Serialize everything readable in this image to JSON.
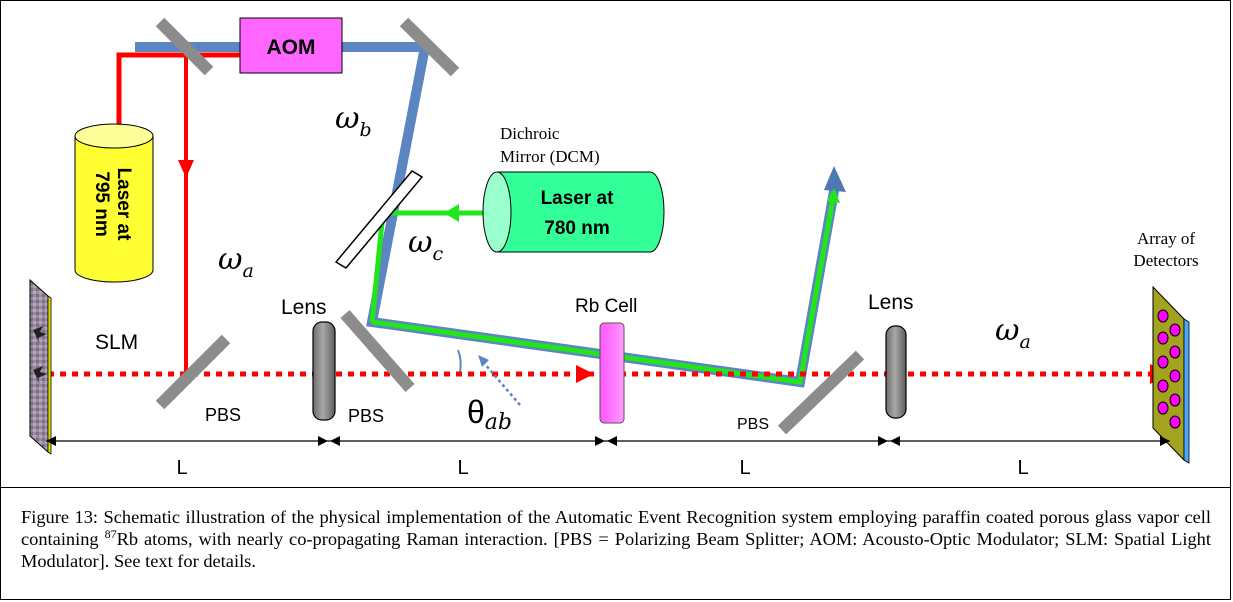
{
  "labels": {
    "aom": "AOM",
    "laser795_line1": "Laser at",
    "laser795_line2": "795 nm",
    "laser780_line1": "Laser at",
    "laser780_line2": "780 nm",
    "dcm_line1": "Dichroic",
    "dcm_line2": "Mirror (DCM)",
    "slm": "SLM",
    "lens_left": "Lens",
    "lens_right": "Lens",
    "pbs_1": "PBS",
    "pbs_2": "PBS",
    "pbs_3": "PBS",
    "rb_cell": "Rb Cell",
    "detectors_line1": "Array of",
    "detectors_line2": "Detectors",
    "omega_b": "ω",
    "omega_b_sub": "b",
    "omega_a_left": "ω",
    "omega_a_left_sub": "a",
    "omega_c": "ω",
    "omega_c_sub": "c",
    "omega_a_right": "ω",
    "omega_a_right_sub": "a",
    "theta": "θ",
    "theta_sub": "ab",
    "dist_1": "L",
    "dist_2": "L",
    "dist_3": "L",
    "dist_4": "L"
  },
  "colors": {
    "red_beam": "#ff0000",
    "blue_beam": "#5b86c2",
    "green_beam": "#22e61a",
    "aom_fill": "#ff66ff",
    "laser795_fill": "#ffff33",
    "laser780_fill": "#33ff99",
    "mirror_gray": "#8c8c8c",
    "slm_fill": "#9a8aa0",
    "detector_panel": "#a3a31f",
    "detector_dot": "#ff00ff"
  },
  "caption": {
    "prefix": "Figure 13: Schematic illustration of the physical implementation of the Automatic Event Recognition system employing paraffin coated porous glass vapor cell containing ",
    "superscript": "87",
    "suffix": "Rb atoms, with nearly co-propagating Raman interaction. [PBS = Polarizing Beam Splitter; AOM: Acousto-Optic Modulator; SLM: Spatial Light Modulator]. See text for details."
  }
}
